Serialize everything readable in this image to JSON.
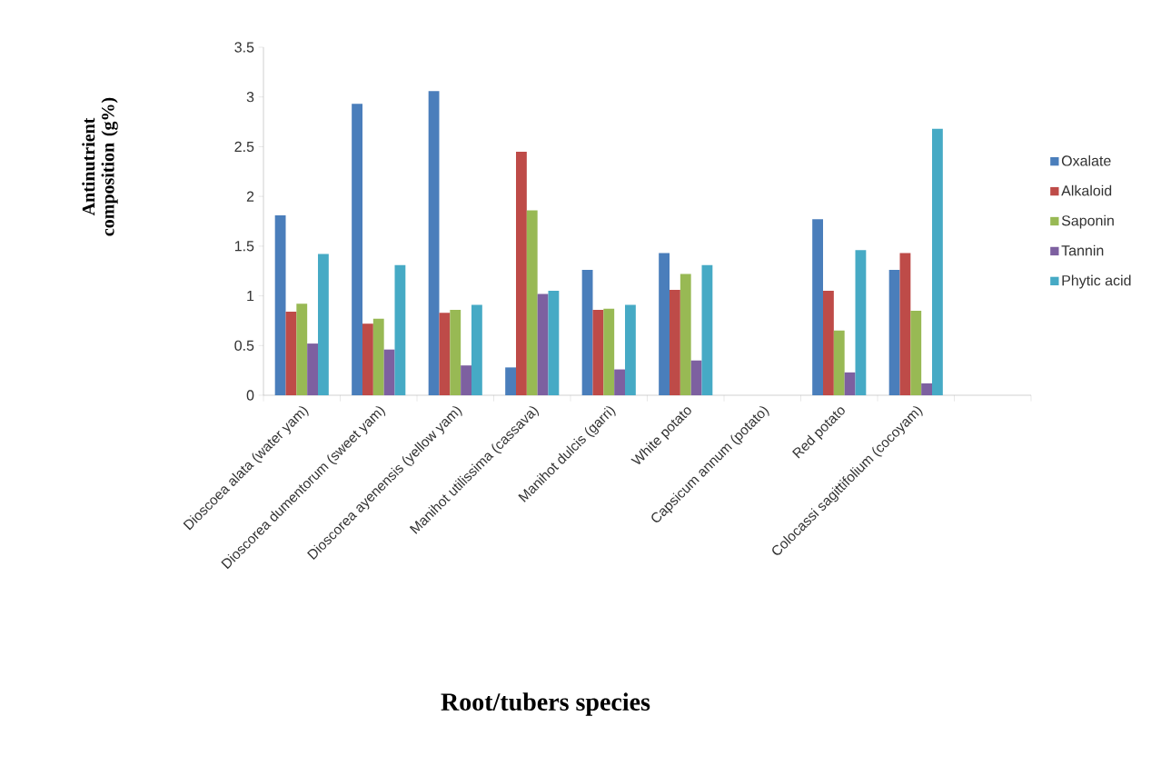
{
  "chart_data": {
    "type": "bar",
    "xlabel": "Root/tubers species",
    "ylabel": "Antinutrient composition (g%)",
    "categories": [
      "Dioscoea alata (water yam)",
      "Dioscorea dumentorum (sweet yam)",
      "Dioscorea ayenensis (yellow yam)",
      "Manihot utilissima (cassava)",
      "Manihot dulcis (garri)",
      "White potato",
      "Capsicum annum (potato)",
      "Red potato",
      "Colocassi sagittifolium (cocoyam)",
      null
    ],
    "series": [
      {
        "name": "Oxalate",
        "color": "#4a7ebb",
        "values": [
          1.81,
          2.93,
          3.06,
          0.28,
          1.26,
          1.43,
          null,
          1.77,
          1.26,
          null
        ]
      },
      {
        "name": "Alkaloid",
        "color": "#be4b48",
        "values": [
          0.84,
          0.72,
          0.83,
          2.45,
          0.86,
          1.06,
          null,
          1.05,
          1.43,
          null
        ]
      },
      {
        "name": "Saponin",
        "color": "#98b954",
        "values": [
          0.92,
          0.77,
          0.86,
          1.86,
          0.87,
          1.22,
          null,
          0.65,
          0.85,
          null
        ]
      },
      {
        "name": "Tannin",
        "color": "#7d60a0",
        "values": [
          0.52,
          0.46,
          0.3,
          1.02,
          0.26,
          0.35,
          null,
          0.23,
          0.12,
          null
        ]
      },
      {
        "name": "Phytic acid",
        "color": "#46aac5",
        "values": [
          1.42,
          1.31,
          0.91,
          1.05,
          0.91,
          1.31,
          null,
          1.46,
          2.68,
          null
        ]
      }
    ],
    "ylim": [
      0,
      3.5
    ],
    "yticks": [
      0,
      0.5,
      1,
      1.5,
      2,
      2.5,
      3,
      3.5
    ],
    "legend": "right"
  }
}
